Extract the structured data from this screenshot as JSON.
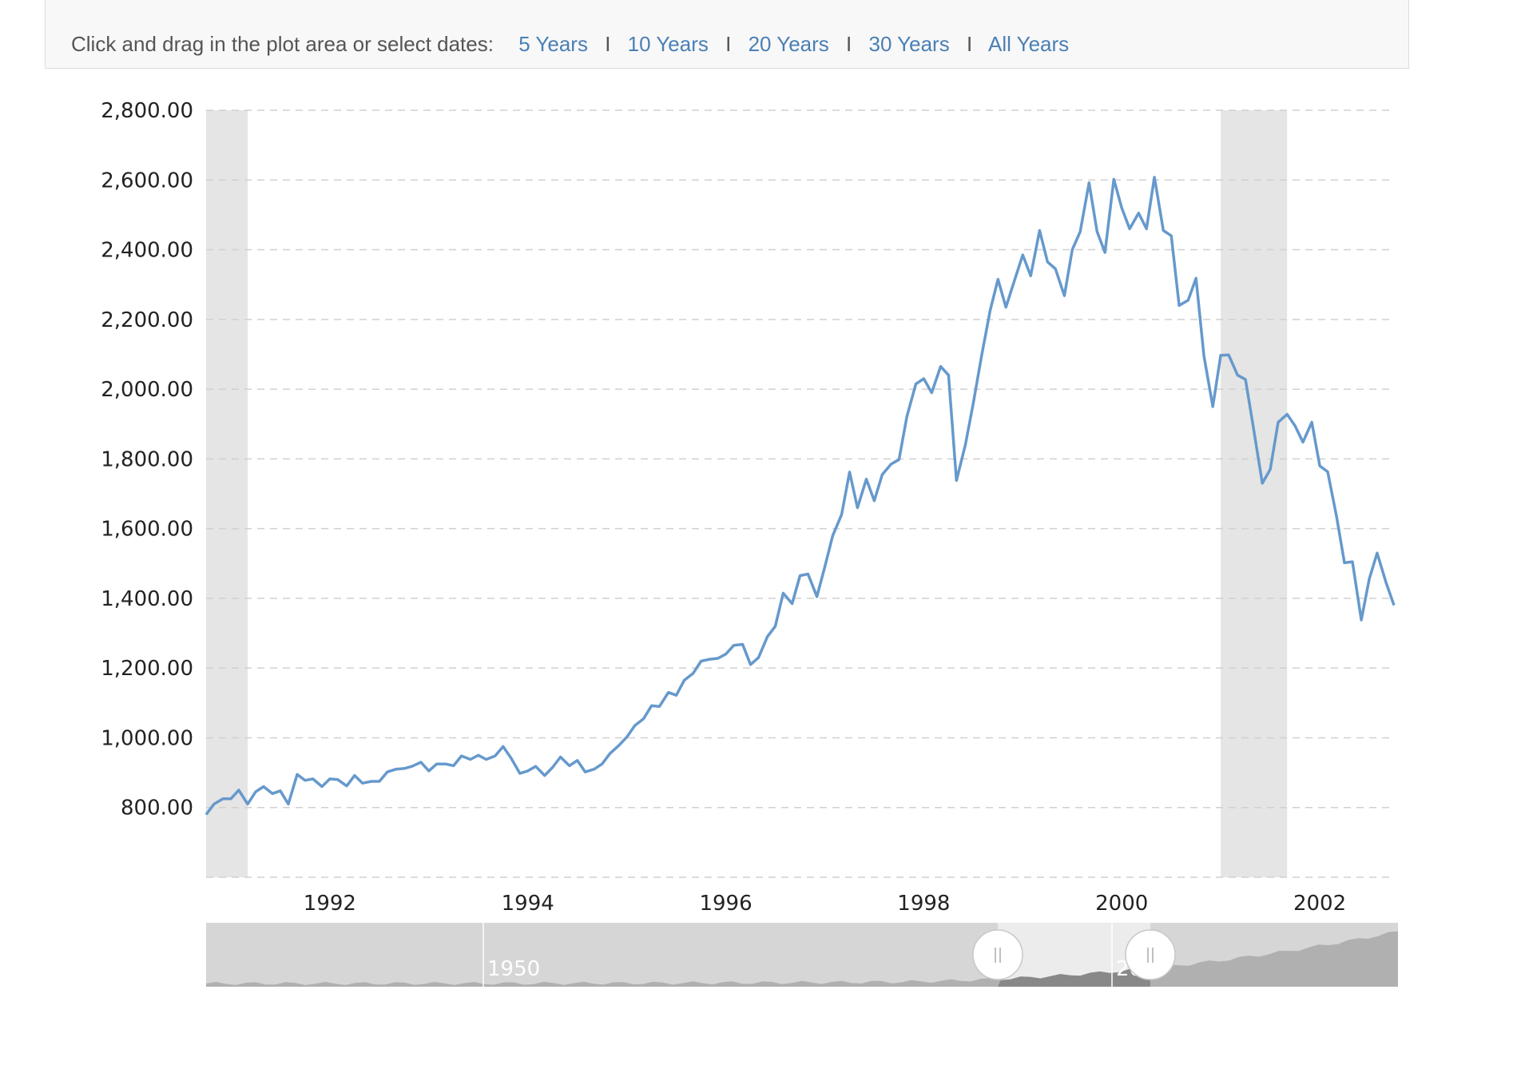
{
  "toolbar": {
    "prompt": "Click and drag in the plot area or select dates:",
    "ranges": [
      "5 Years",
      "10 Years",
      "20 Years",
      "30 Years",
      "All Years"
    ],
    "separator": "I"
  },
  "colors": {
    "line": "#6699cc",
    "recession_band": "#e5e5e5",
    "grid": "#d0d0d0",
    "navigator_bg": "#d6d6d6",
    "navigator_selected": "#ececec",
    "navigator_area": "#b0b0b0",
    "navigator_area_selected": "#888888"
  },
  "navigator": {
    "labels": [
      "1950",
      "2000"
    ],
    "handle_icon": "grip-lines-icon"
  },
  "chart_data": {
    "type": "line",
    "xlabel": "",
    "ylabel": "",
    "xlim": [
      1990.75,
      2002.75
    ],
    "ylim": [
      600,
      2800
    ],
    "y_ticks": [
      800,
      1000,
      1200,
      1400,
      1600,
      1800,
      2000,
      2200,
      2400,
      2600,
      2800
    ],
    "y_tick_labels": [
      "800.00",
      "1,000.00",
      "1,200.00",
      "1,400.00",
      "1,600.00",
      "1,800.00",
      "2,000.00",
      "2,200.00",
      "2,400.00",
      "2,600.00",
      "2,800.00"
    ],
    "x_ticks": [
      1992,
      1994,
      1996,
      1998,
      2000,
      2002
    ],
    "x_tick_labels": [
      "1992",
      "1994",
      "1996",
      "1998",
      "2000",
      "2002"
    ],
    "grid": true,
    "recession_bands": [
      [
        1990.75,
        1991.17
      ],
      [
        2001.0,
        2001.67
      ]
    ],
    "series": [
      {
        "name": "",
        "x": [
          1990.75,
          1990.83,
          1990.92,
          1991.0,
          1991.08,
          1991.17,
          1991.25,
          1991.33,
          1991.42,
          1991.5,
          1991.58,
          1991.67,
          1991.75,
          1991.83,
          1991.92,
          1992.0,
          1992.08,
          1992.17,
          1992.25,
          1992.33,
          1992.42,
          1992.5,
          1992.58,
          1992.67,
          1992.75,
          1992.83,
          1992.92,
          1993.0,
          1993.08,
          1993.17,
          1993.25,
          1993.33,
          1993.42,
          1993.5,
          1993.58,
          1993.67,
          1993.75,
          1993.83,
          1993.92,
          1994.0,
          1994.08,
          1994.17,
          1994.25,
          1994.33,
          1994.42,
          1994.5,
          1994.58,
          1994.67,
          1994.75,
          1994.83,
          1994.92,
          1995.0,
          1995.08,
          1995.17,
          1995.25,
          1995.33,
          1995.42,
          1995.5,
          1995.58,
          1995.67,
          1995.75,
          1995.83,
          1995.92,
          1996.0,
          1996.08,
          1996.17,
          1996.25,
          1996.33,
          1996.42,
          1996.5,
          1996.58,
          1996.67,
          1996.75,
          1996.83,
          1996.92,
          1997.0,
          1997.08,
          1997.17,
          1997.25,
          1997.33,
          1997.42,
          1997.5,
          1997.58,
          1997.67,
          1997.75,
          1997.83,
          1997.92,
          1998.0,
          1998.08,
          1998.17,
          1998.25,
          1998.33,
          1998.42,
          1998.5,
          1998.58,
          1998.67,
          1998.75,
          1998.83,
          1998.92,
          1999.0,
          1999.08,
          1999.17,
          1999.25,
          1999.33,
          1999.42,
          1999.5,
          1999.58,
          1999.67,
          1999.75,
          1999.83,
          1999.92,
          2000.0,
          2000.08,
          2000.17,
          2000.25,
          2000.33,
          2000.42,
          2000.5,
          2000.58,
          2000.67,
          2000.75,
          2000.83,
          2000.92,
          2001.0,
          2001.08,
          2001.17,
          2001.25,
          2001.33,
          2001.42,
          2001.5,
          2001.58,
          2001.67,
          2001.75,
          2001.83,
          2001.92,
          2002.0,
          2002.08,
          2002.17,
          2002.25,
          2002.33,
          2002.42,
          2002.5,
          2002.58,
          2002.67,
          2002.75
        ],
        "values": [
          780,
          810,
          825,
          825,
          850,
          810,
          845,
          860,
          840,
          848,
          810,
          895,
          878,
          882,
          860,
          882,
          880,
          862,
          892,
          870,
          875,
          875,
          902,
          910,
          912,
          918,
          930,
          905,
          925,
          925,
          920,
          948,
          938,
          950,
          938,
          948,
          975,
          942,
          898,
          905,
          918,
          892,
          915,
          945,
          920,
          935,
          902,
          910,
          925,
          955,
          978,
          1002,
          1035,
          1055,
          1092,
          1090,
          1130,
          1122,
          1165,
          1185,
          1220,
          1225,
          1228,
          1240,
          1265,
          1268,
          1210,
          1230,
          1290,
          1320,
          1415,
          1385,
          1465,
          1470,
          1405,
          1490,
          1580,
          1640,
          1762,
          1660,
          1742,
          1680,
          1755,
          1785,
          1798,
          1922,
          2015,
          2030,
          1990,
          2065,
          2040,
          1738,
          1840,
          1960,
          2090,
          2225,
          2315,
          2235,
          2315,
          2385,
          2325,
          2455,
          2365,
          2345,
          2268,
          2400,
          2452,
          2592,
          2452,
          2392,
          2602,
          2520,
          2460,
          2505,
          2460,
          2608,
          2455,
          2440,
          2240,
          2255,
          2318,
          2095,
          1950,
          2097,
          2098,
          2040,
          2028,
          1890,
          1730,
          1770,
          1905,
          1928,
          1895,
          1848,
          1905,
          1780,
          1763,
          1635,
          1502,
          1505,
          1338,
          1455,
          1530,
          1445,
          1380
        ]
      }
    ]
  }
}
